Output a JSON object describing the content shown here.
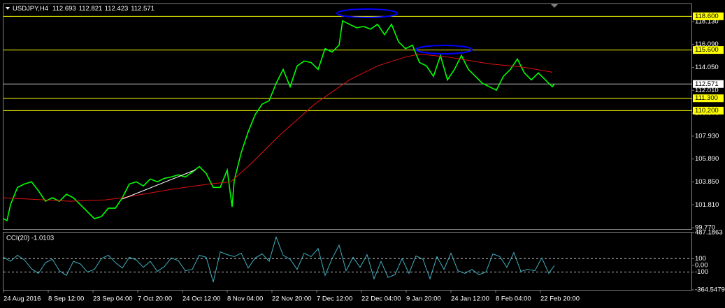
{
  "chart_data": [
    {
      "type": "line",
      "title": "USDJPY,H4",
      "ohlc": [
        112.693,
        112.821,
        112.423,
        112.571
      ],
      "xlim": [
        0,
        985
      ],
      "xticks": [
        {
          "value": 0,
          "label": "24 Aug 2016"
        },
        {
          "value": 64,
          "label": "8 Sep 12:00"
        },
        {
          "value": 128,
          "label": "23 Sep 04:00"
        },
        {
          "value": 192,
          "label": "7 Oct 20:00"
        },
        {
          "value": 256,
          "label": "24 Oct 12:00"
        },
        {
          "value": 320,
          "label": "8 Nov 04:00"
        },
        {
          "value": 384,
          "label": "22 Nov 20:00"
        },
        {
          "value": 448,
          "label": "7 Dec 12:00"
        },
        {
          "value": 512,
          "label": "22 Dec 04:00"
        },
        {
          "value": 576,
          "label": "9 Jan 20:00"
        },
        {
          "value": 640,
          "label": "24 Jan 12:00"
        },
        {
          "value": 704,
          "label": "8 Feb 04:00"
        },
        {
          "value": 768,
          "label": "22 Feb 20:00"
        }
      ],
      "ylim": [
        99.65,
        119.68
      ],
      "yticks": [
        {
          "value": 118.13,
          "label": "118.130"
        },
        {
          "value": 116.09,
          "label": "116.090"
        },
        {
          "value": 114.05,
          "label": "114.050"
        },
        {
          "value": 112.01,
          "label": "112.010"
        },
        {
          "value": 109.97,
          "label": "109.970"
        },
        {
          "value": 107.93,
          "label": "107.930"
        },
        {
          "value": 105.89,
          "label": "105.890"
        },
        {
          "value": 103.85,
          "label": "103.850"
        },
        {
          "value": 101.81,
          "label": "101.810"
        },
        {
          "value": 99.77,
          "label": "99.770"
        }
      ],
      "levels": [
        {
          "value": 118.6,
          "label": "118.600"
        },
        {
          "value": 115.6,
          "label": "115.600"
        },
        {
          "value": 111.3,
          "label": "111.300"
        },
        {
          "value": 110.2,
          "label": "110.200"
        }
      ],
      "level_color": "#ffff00",
      "current": 112.571,
      "current_color": "#c0c0c0",
      "series": [
        {
          "color": "#00ff00",
          "x": [
            0,
            5,
            10,
            20,
            30,
            40,
            50,
            60,
            70,
            80,
            90,
            100,
            110,
            120,
            130,
            140,
            150,
            160,
            170,
            180,
            190,
            200,
            210,
            220,
            230,
            240,
            250,
            260,
            270,
            280,
            290,
            300,
            310,
            320,
            327,
            330,
            340,
            350,
            360,
            370,
            380,
            390,
            400,
            410,
            420,
            430,
            440,
            450,
            460,
            470,
            480,
            485,
            495,
            505,
            515,
            525,
            535,
            545,
            555,
            565,
            575,
            585,
            595,
            605,
            615,
            625,
            635,
            645,
            655,
            665,
            675,
            685,
            695,
            705,
            715,
            725,
            735,
            745,
            755,
            765,
            775,
            785,
            788
          ],
          "values": [
            100.58,
            100.4,
            101.82,
            103.36,
            103.67,
            103.86,
            103.06,
            102.13,
            102.44,
            102.13,
            102.75,
            102.44,
            101.82,
            101.2,
            100.58,
            100.77,
            101.51,
            101.51,
            102.44,
            103.67,
            103.86,
            103.49,
            104.11,
            103.86,
            104.17,
            104.29,
            104.48,
            104.29,
            104.72,
            105.22,
            104.6,
            103.36,
            103.36,
            104.91,
            101.63,
            103.98,
            106.45,
            108.31,
            109.85,
            110.78,
            111.09,
            112.63,
            113.87,
            112.33,
            114.18,
            114.61,
            114.49,
            113.87,
            115.72,
            115.42,
            116.03,
            118.2,
            117.89,
            117.58,
            117.7,
            117.46,
            117.89,
            116.96,
            117.89,
            116.34,
            115.72,
            116.03,
            114.49,
            114.18,
            113.25,
            115.11,
            112.94,
            113.87,
            115.11,
            113.87,
            113.25,
            112.63,
            112.33,
            112.02,
            113.25,
            113.87,
            114.8,
            113.56,
            112.94,
            113.56,
            112.94,
            112.33,
            112.57
          ]
        },
        {
          "color": "#e01010",
          "x": [
            0,
            95,
            145,
            170,
            245,
            295,
            325,
            355,
            395,
            445,
            495,
            535,
            575,
            595,
            635,
            695,
            745,
            785
          ],
          "values": [
            102.44,
            102.13,
            102.25,
            102.44,
            103.24,
            103.67,
            103.86,
            105.53,
            108.0,
            110.78,
            112.94,
            114.18,
            114.98,
            115.23,
            114.98,
            114.37,
            114.06,
            113.62
          ]
        }
      ]
    },
    {
      "type": "line",
      "title": "CCI(20) -1.0103",
      "xlim": [
        0,
        985
      ],
      "ylim": [
        -364.5479,
        487.1863
      ],
      "yticks": [
        487.1863,
        100,
        {
          "value": 0,
          "label": "0.00"
        },
        -100,
        -364.5479
      ],
      "levels": [
        100,
        -100
      ],
      "series": [
        {
          "color": "#40b0c0",
          "x": [
            0,
            10,
            20,
            30,
            40,
            50,
            60,
            70,
            80,
            90,
            100,
            110,
            120,
            130,
            140,
            150,
            160,
            170,
            180,
            190,
            200,
            210,
            220,
            230,
            240,
            250,
            260,
            270,
            280,
            290,
            300,
            310,
            320,
            330,
            340,
            350,
            360,
            370,
            380,
            390,
            400,
            410,
            420,
            430,
            440,
            450,
            460,
            470,
            480,
            490,
            500,
            510,
            520,
            530,
            540,
            550,
            560,
            570,
            580,
            590,
            600,
            610,
            620,
            630,
            640,
            650,
            660,
            670,
            680,
            690,
            700,
            710,
            720,
            730,
            740,
            750,
            760,
            770,
            780,
            788
          ],
          "values": [
            120,
            60,
            150,
            80,
            -50,
            -120,
            40,
            90,
            -80,
            -150,
            60,
            20,
            -100,
            -60,
            100,
            150,
            40,
            -40,
            120,
            80,
            -30,
            60,
            -90,
            -20,
            110,
            70,
            -80,
            -60,
            150,
            120,
            -250,
            200,
            160,
            130,
            180,
            -40,
            110,
            170,
            60,
            420,
            150,
            90,
            -60,
            180,
            130,
            250,
            -150,
            100,
            300,
            -80,
            120,
            -30,
            160,
            -200,
            60,
            -180,
            -140,
            100,
            -120,
            140,
            90,
            -200,
            130,
            -60,
            180,
            -80,
            -120,
            -60,
            -140,
            -100,
            170,
            130,
            -30,
            190,
            -90,
            -60,
            -80,
            110,
            -120,
            -1.0103
          ]
        }
      ]
    }
  ]
}
